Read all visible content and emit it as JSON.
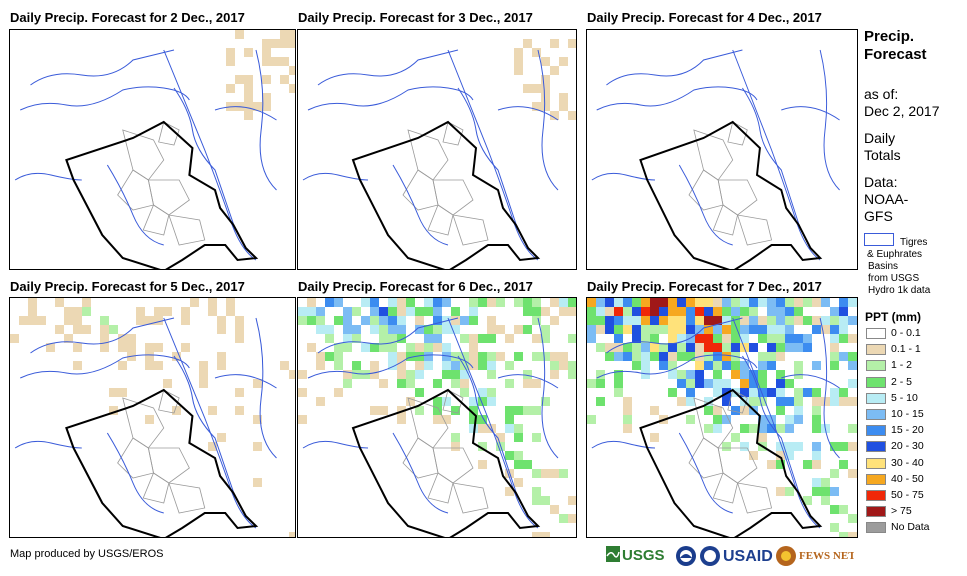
{
  "panels": [
    {
      "title": "Daily Precip. Forecast for 2 Dec., 2017",
      "intensity": 0.05
    },
    {
      "title": "Daily Precip. Forecast for 3 Dec., 2017",
      "intensity": 0.04
    },
    {
      "title": "Daily Precip. Forecast for 4 Dec., 2017",
      "intensity": 0.0
    },
    {
      "title": "Daily Precip. Forecast for 5 Dec., 2017",
      "intensity": 0.35
    },
    {
      "title": "Daily Precip. Forecast for 6 Dec., 2017",
      "intensity": 0.75
    },
    {
      "title": "Daily Precip. Forecast for 7 Dec., 2017",
      "intensity": 1.0
    }
  ],
  "side": {
    "heading1": "Precip.",
    "heading2": "Forecast",
    "asof1": "as of:",
    "asof2": "Dec 2, 2017",
    "daily1": "Daily",
    "daily2": "Totals",
    "data1": "Data:",
    "data2": "NOAA-",
    "data3": "GFS"
  },
  "basin_legend": {
    "line1": "Tigres",
    "line2": "& Euphrates",
    "line3": "Basins",
    "line4": "from USGS",
    "line5": "Hydro 1k data"
  },
  "legend": {
    "title": "PPT (mm)",
    "items": [
      {
        "label": "0 - 0.1",
        "color": "#ffffff"
      },
      {
        "label": "0.1 - 1",
        "color": "#ecd8b4"
      },
      {
        "label": "1 - 2",
        "color": "#b4f0a8"
      },
      {
        "label": "2 - 5",
        "color": "#6ee26e"
      },
      {
        "label": "5 - 10",
        "color": "#b8ecf4"
      },
      {
        "label": "10 - 15",
        "color": "#7cbcf4"
      },
      {
        "label": "15 - 20",
        "color": "#3c8cf0"
      },
      {
        "label": "20 - 30",
        "color": "#2050e0"
      },
      {
        "label": "30 - 40",
        "color": "#ffe27a"
      },
      {
        "label": "40 - 50",
        "color": "#f6a820"
      },
      {
        "label": "50 - 75",
        "color": "#f02808"
      },
      {
        "label": "> 75",
        "color": "#a01818"
      },
      {
        "label": "No Data",
        "color": "#9c9c9c"
      }
    ]
  },
  "credit": "Map produced by USGS/EROS",
  "logos": [
    "USGS",
    "NOAA",
    "USAID",
    "FEWS NET"
  ]
}
